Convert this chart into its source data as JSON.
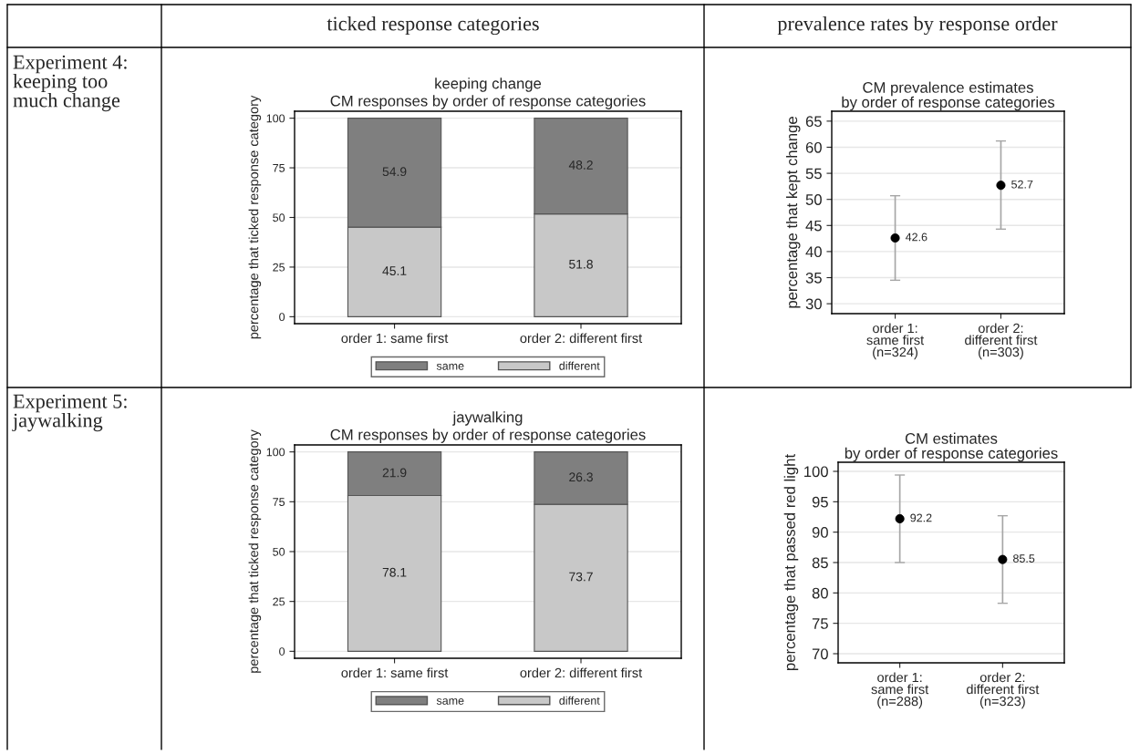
{
  "chart_data": [
    {
      "type": "bar",
      "title": "keeping change",
      "subtitle": "CM responses by order of response categories",
      "ylabel": "percentage that ticked response category",
      "categories": [
        "order 1: same first",
        "order 2: different first"
      ],
      "stacked": true,
      "series": [
        {
          "name": "different",
          "color": "#c8c8c8",
          "values": [
            45.1,
            51.8
          ]
        },
        {
          "name": "same",
          "color": "#7f7f7f",
          "values": [
            54.9,
            48.2
          ]
        }
      ],
      "ylim": [
        -3.5,
        103.5
      ],
      "yticks": [
        0,
        25,
        50,
        75,
        100
      ],
      "grid": "y",
      "legend": "bottom",
      "data_labels": true,
      "annotations": [
        "ticked response categories",
        "Experiment 4:\nkeeping too\nmuch change"
      ]
    },
    {
      "type": "scatter",
      "title": "CM prevalence estimates\nby order of response categories",
      "ylabel": "percentage that kept change",
      "categories": [
        "order 1:\nsame first\n(n=324)",
        "order 2:\ndifferent first\n(n=303)"
      ],
      "series": [
        {
          "color": "#000000",
          "values": [
            42.6,
            52.7
          ],
          "errors": [
            [
              34.5,
              50.7
            ],
            [
              44.3,
              61.2
            ]
          ]
        }
      ],
      "ylim": [
        28.1,
        66.9
      ],
      "yticks": [
        30,
        35,
        40,
        45,
        50,
        55,
        60,
        65
      ],
      "grid": "y",
      "marker": "circle",
      "data_labels": true,
      "annotations": [
        "prevalence rates by response order"
      ]
    },
    {
      "type": "bar",
      "title": "jaywalking",
      "subtitle": "CM responses by order of response categories",
      "ylabel": "percentage that ticked response category",
      "categories": [
        "order 1: same first",
        "order 2: different first"
      ],
      "stacked": true,
      "series": [
        {
          "name": "different",
          "color": "#c8c8c8",
          "values": [
            78.1,
            73.7
          ]
        },
        {
          "name": "same",
          "color": "#7f7f7f",
          "values": [
            21.9,
            26.3
          ]
        }
      ],
      "ylim": [
        -3.5,
        103.5
      ],
      "yticks": [
        0,
        25,
        50,
        75,
        100
      ],
      "grid": "y",
      "legend": "bottom",
      "data_labels": true,
      "annotations": [
        "Experiment 5:\njaywalking"
      ]
    },
    {
      "type": "scatter",
      "title": "CM estimates\nby order of response categories",
      "ylabel": "percentage that passed red light",
      "categories": [
        "order 1:\nsame first\n(n=288)",
        "order 2:\ndifferent first\n(n=323)"
      ],
      "series": [
        {
          "color": "#000000",
          "values": [
            92.2,
            85.5
          ],
          "errors": [
            [
              85.0,
              99.4
            ],
            [
              78.3,
              92.7
            ]
          ]
        }
      ],
      "ylim": [
        68.5,
        101.5
      ],
      "yticks": [
        70,
        75,
        80,
        85,
        90,
        95,
        100
      ],
      "grid": "y",
      "marker": "circle",
      "data_labels": true
    }
  ]
}
